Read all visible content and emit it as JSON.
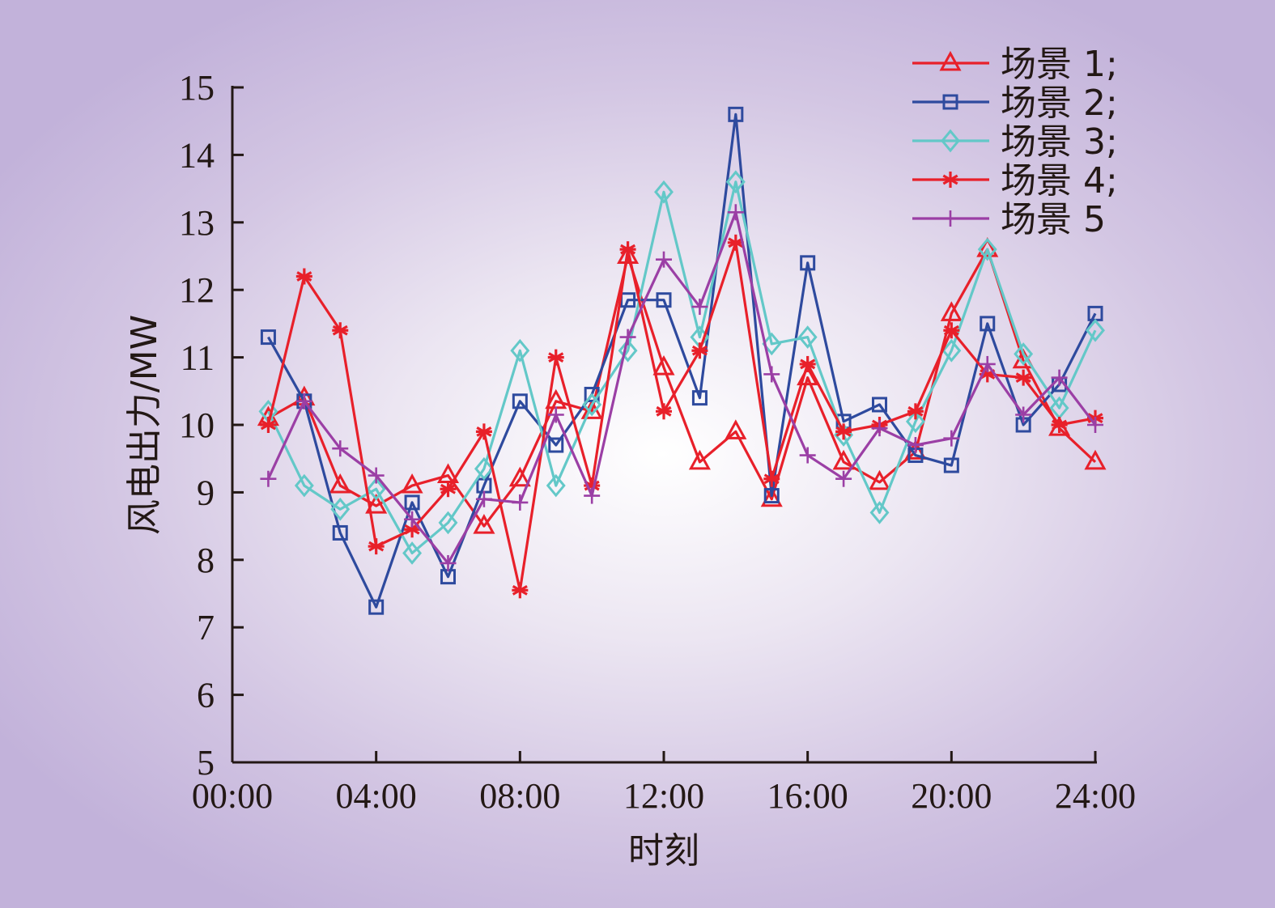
{
  "chart_data": {
    "type": "line",
    "xlabel": "时刻",
    "ylabel": "风电出力/MW",
    "ylim": [
      5,
      15
    ],
    "xlim": [
      0,
      24
    ],
    "x_ticks": [
      {
        "value": 0,
        "label": "00:00"
      },
      {
        "value": 4,
        "label": "04:00"
      },
      {
        "value": 8,
        "label": "08:00"
      },
      {
        "value": 12,
        "label": "12:00"
      },
      {
        "value": 16,
        "label": "16:00"
      },
      {
        "value": 20,
        "label": "20:00"
      },
      {
        "value": 24,
        "label": "24:00"
      }
    ],
    "y_ticks": [
      "5",
      "6",
      "7",
      "8",
      "9",
      "10",
      "11",
      "12",
      "13",
      "14",
      "15"
    ],
    "x": [
      1,
      2,
      3,
      4,
      5,
      6,
      7,
      8,
      9,
      10,
      11,
      12,
      13,
      14,
      15,
      16,
      17,
      18,
      19,
      20,
      21,
      22,
      23,
      24
    ],
    "legend_position": "top-right",
    "grid": false,
    "series": [
      {
        "name": "场景 1;",
        "color": "#e8202a",
        "marker": "triangle",
        "values": [
          10.1,
          10.4,
          9.1,
          8.8,
          9.1,
          9.25,
          8.5,
          9.2,
          10.35,
          10.2,
          12.5,
          10.85,
          9.45,
          9.9,
          8.9,
          10.7,
          9.45,
          9.15,
          9.6,
          11.65,
          12.6,
          10.95,
          9.95,
          9.45
        ]
      },
      {
        "name": "场景 2;",
        "color": "#2e4a9e",
        "marker": "square",
        "values": [
          11.3,
          10.35,
          8.4,
          7.3,
          8.85,
          7.75,
          9.1,
          10.35,
          9.7,
          10.45,
          11.85,
          11.85,
          10.4,
          14.6,
          8.95,
          12.4,
          10.05,
          10.3,
          9.55,
          9.4,
          11.5,
          10.0,
          10.6,
          11.65
        ]
      },
      {
        "name": "场景 3;",
        "color": "#63c8c8",
        "marker": "diamond",
        "values": [
          10.2,
          9.1,
          8.75,
          9.05,
          8.1,
          8.55,
          9.35,
          11.1,
          9.1,
          10.3,
          11.1,
          13.45,
          11.3,
          13.6,
          11.2,
          11.3,
          9.85,
          8.7,
          10.05,
          11.1,
          12.6,
          11.05,
          10.25,
          11.4
        ]
      },
      {
        "name": "场景 4;",
        "color": "#e8202a",
        "marker": "asterisk",
        "values": [
          10.0,
          12.2,
          11.4,
          8.2,
          8.45,
          9.05,
          9.9,
          7.55,
          11.0,
          9.1,
          12.6,
          10.2,
          11.1,
          12.7,
          9.2,
          10.9,
          9.9,
          10.0,
          10.2,
          11.4,
          10.75,
          10.7,
          10.0,
          10.1
        ]
      },
      {
        "name": "场景 5",
        "color": "#9b3fa5",
        "marker": "plus",
        "values": [
          9.2,
          10.35,
          9.65,
          9.25,
          8.6,
          7.95,
          8.9,
          8.85,
          10.15,
          8.95,
          11.3,
          12.45,
          11.75,
          13.15,
          10.75,
          9.55,
          9.2,
          9.95,
          9.7,
          9.8,
          10.9,
          10.15,
          10.7,
          10.0
        ]
      }
    ]
  }
}
